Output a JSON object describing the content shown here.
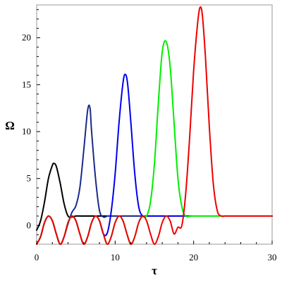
{
  "chart_data": {
    "type": "line",
    "title": "",
    "xlabel": "τ",
    "ylabel": "Ω",
    "xlim": [
      0,
      30
    ],
    "ylim": [
      -2,
      23.5
    ],
    "xticks": [
      "0",
      "10",
      "20",
      "30"
    ],
    "yticks": [
      "0",
      "5",
      "10",
      "15",
      "20"
    ],
    "xtick_values": [
      0,
      10,
      20,
      30
    ],
    "ytick_values": [
      0,
      5,
      10,
      15,
      20
    ],
    "grid": false,
    "legend": "none",
    "series": [
      {
        "color": "#000000",
        "x": [
          0,
          0.5,
          1,
          1.5,
          2,
          2.2,
          2.5,
          3,
          3.5,
          4,
          4.5,
          5,
          6,
          8,
          10,
          15,
          20,
          25,
          30
        ],
        "y": [
          -0.5,
          0.5,
          2.5,
          5.0,
          6.4,
          6.6,
          6.3,
          4.5,
          2.3,
          1.0,
          0.9,
          1.0,
          1.0,
          1.0,
          1.0,
          1.0,
          1.0,
          1.0,
          1.0
        ]
      },
      {
        "color": "#1a2a8a",
        "x": [
          0,
          0.5,
          1,
          1.5,
          2,
          2.5,
          3,
          3.5,
          4,
          4.5,
          5,
          5.5,
          6,
          6.5,
          6.8,
          7,
          7.5,
          8,
          8.5,
          9,
          9.5,
          10,
          12,
          15,
          20,
          25,
          30
        ],
        "y": [
          -2.0,
          -1.2,
          0.3,
          1.0,
          0.5,
          -0.9,
          -2.0,
          -1.2,
          0.2,
          1.4,
          2.1,
          4.0,
          8.0,
          12.3,
          12.5,
          10.0,
          5.0,
          1.6,
          0.9,
          1.0,
          1.0,
          1.0,
          1.0,
          1.0,
          1.0,
          1.0,
          1.0
        ]
      },
      {
        "color": "#0000ee",
        "x": [
          0,
          0.5,
          1,
          1.5,
          2,
          2.5,
          3,
          3.5,
          4,
          4.5,
          5,
          5.5,
          6,
          6.5,
          7,
          7.5,
          8,
          8.5,
          9,
          9.5,
          10,
          10.5,
          11,
          11.3,
          11.6,
          12,
          12.5,
          13,
          13.5,
          14,
          15,
          20,
          25,
          30
        ],
        "y": [
          -2.0,
          -1.2,
          0.3,
          1.0,
          0.5,
          -0.9,
          -2.0,
          -1.2,
          0.3,
          1.0,
          0.5,
          -0.9,
          -2.0,
          -1.2,
          0.3,
          1.0,
          0.5,
          -0.9,
          -0.8,
          1.5,
          5.5,
          11.0,
          15.2,
          16.1,
          15.0,
          11.0,
          5.5,
          2.0,
          1.0,
          1.0,
          1.0,
          1.0,
          1.0,
          1.0
        ]
      },
      {
        "color": "#00ee00",
        "x": [
          0,
          0.5,
          1,
          1.5,
          2,
          2.5,
          3,
          3.5,
          4,
          4.5,
          5,
          5.5,
          6,
          6.5,
          7,
          7.5,
          8,
          8.5,
          9,
          9.5,
          10,
          10.5,
          11,
          11.5,
          12,
          12.5,
          13,
          13.5,
          14,
          14.5,
          15,
          15.5,
          16,
          16.5,
          17,
          17.5,
          18,
          18.5,
          19,
          20,
          25,
          30
        ],
        "y": [
          -2.0,
          -1.2,
          0.3,
          1.0,
          0.5,
          -0.9,
          -2.0,
          -1.2,
          0.3,
          1.0,
          0.5,
          -0.9,
          -2.0,
          -1.2,
          0.3,
          1.0,
          0.5,
          -0.9,
          -2.0,
          -1.2,
          0.3,
          1.0,
          0.5,
          -0.9,
          -2.0,
          -1.2,
          0.3,
          1.0,
          1.0,
          2.5,
          6.5,
          13.0,
          18.5,
          19.6,
          17.0,
          11.0,
          5.0,
          2.0,
          1.0,
          1.0,
          1.0,
          1.0
        ]
      },
      {
        "color": "#ee0000",
        "x": [
          0,
          0.5,
          1,
          1.5,
          2,
          2.5,
          3,
          3.5,
          4,
          4.5,
          5,
          5.5,
          6,
          6.5,
          7,
          7.5,
          8,
          8.5,
          9,
          9.5,
          10,
          10.5,
          11,
          11.5,
          12,
          12.5,
          13,
          13.5,
          14,
          14.5,
          15,
          15.5,
          16,
          16.5,
          17,
          17.5,
          18,
          18.5,
          19,
          19.5,
          20,
          20.5,
          20.8,
          21.1,
          21.5,
          22,
          22.5,
          23,
          23.5,
          24,
          25,
          30
        ],
        "y": [
          -2.0,
          -1.2,
          0.3,
          1.0,
          0.5,
          -0.9,
          -2.0,
          -1.2,
          0.3,
          1.0,
          0.5,
          -0.9,
          -2.0,
          -1.2,
          0.3,
          1.0,
          0.5,
          -0.9,
          -2.0,
          -1.2,
          0.3,
          1.0,
          0.5,
          -0.9,
          -2.0,
          -1.2,
          0.3,
          1.0,
          0.5,
          -0.9,
          -2.0,
          -1.2,
          0.3,
          1.0,
          0.5,
          -0.9,
          -0.2,
          0.0,
          3.5,
          9.5,
          16.5,
          21.5,
          23.2,
          22.5,
          18.0,
          10.5,
          4.5,
          1.6,
          1.0,
          1.0,
          1.0,
          1.0
        ]
      }
    ]
  }
}
